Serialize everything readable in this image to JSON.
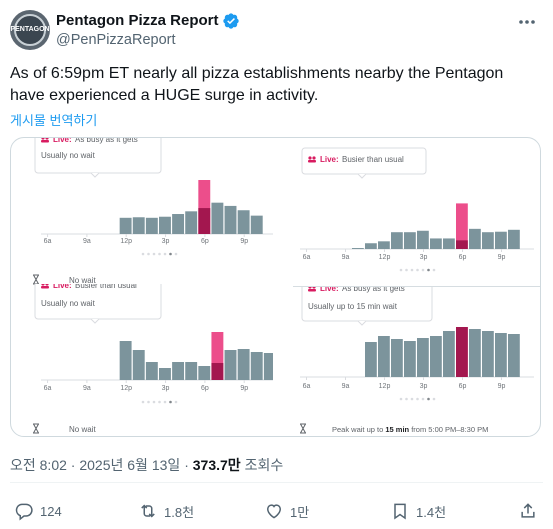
{
  "account": {
    "name": "Pentagon Pizza Report",
    "handle": "@PenPizzaReport",
    "avatar_text": "PENTAGON",
    "verified_icon": "verified-badge-icon",
    "verified_color": "#1d9bf0"
  },
  "tweet": {
    "text": "As of 6:59pm ET nearly all pizza establishments nearby the Pentagon have experienced a HUGE surge in activity.",
    "translate_label": "게시물 번역하기"
  },
  "media": {
    "colors": {
      "bar": "#7c949c",
      "live_light": "#ec4e8b",
      "live_dark": "#a3174f",
      "live_label": "#d81b60",
      "tooltip_text": "#5f6368",
      "faint_bar": "#b7d2e0"
    },
    "panels": [
      {
        "live_label": "Live:",
        "status": "As busy as it gets",
        "wait": "Usually no wait",
        "footer": "No wait",
        "ticks": [
          "6a",
          "9a",
          "12p",
          "3p",
          "6p",
          "9p"
        ],
        "chart_data": {
          "type": "bar",
          "categories": [
            "6a",
            "7a",
            "8a",
            "9a",
            "10a",
            "11a",
            "12p",
            "1p",
            "2p",
            "3p",
            "4p",
            "5p",
            "6p",
            "7p",
            "8p",
            "9p",
            "10p",
            "11p"
          ],
          "values": [
            0,
            0,
            0,
            0,
            0,
            0,
            30,
            31,
            30,
            32,
            37,
            42,
            48,
            58,
            52,
            44,
            34,
            0
          ],
          "live_index": 12,
          "live_value": 100,
          "ylim": [
            0,
            100
          ]
        }
      },
      {
        "live_label": "Live:",
        "status": "Busier than usual",
        "wait": "",
        "footer": "",
        "ticks": [
          "6a",
          "9a",
          "12p",
          "3p",
          "6p",
          "9p"
        ],
        "chart_data": {
          "type": "bar",
          "categories": [
            "6a",
            "7a",
            "8a",
            "9a",
            "10a",
            "11a",
            "12p",
            "1p",
            "2p",
            "3p",
            "4p",
            "5p",
            "6p",
            "7p",
            "8p",
            "9p",
            "10p",
            "11p"
          ],
          "values": [
            0,
            0,
            0,
            0,
            2,
            12,
            16,
            35,
            35,
            38,
            22,
            22,
            18,
            42,
            35,
            36,
            40,
            0
          ],
          "live_index": 12,
          "live_value": 95,
          "ylim": [
            0,
            100
          ]
        }
      },
      {
        "live_label": "Live:",
        "status": "Busier than usual",
        "wait": "Usually no wait",
        "footer": "No wait",
        "ticks": [
          "6a",
          "9a",
          "12p",
          "3p",
          "6p",
          "9p"
        ],
        "chart_data": {
          "type": "bar",
          "categories": [
            "6a",
            "7a",
            "8a",
            "9a",
            "10a",
            "11a",
            "12p",
            "1p",
            "2p",
            "3p",
            "4p",
            "5p",
            "6p",
            "7p",
            "8p",
            "9p",
            "10p",
            "11p"
          ],
          "values": [
            0,
            0,
            0,
            0,
            0,
            0,
            78,
            60,
            36,
            24,
            36,
            36,
            28,
            34,
            60,
            62,
            56,
            54
          ],
          "live_index": 13,
          "live_value": 96,
          "ylim": [
            0,
            100
          ]
        }
      },
      {
        "live_label": "Live:",
        "status": "As busy as it gets",
        "wait": "Usually up to 15 min wait",
        "footer_prefix": "Peak wait up to ",
        "footer_bold": "15 min",
        "footer_suffix": " from 5:00 PM–8:30 PM",
        "ticks": [
          "6a",
          "9a",
          "12p",
          "3p",
          "6p",
          "9p"
        ],
        "chart_data": {
          "type": "bar",
          "categories": [
            "6a",
            "7a",
            "8a",
            "9a",
            "10a",
            "11a",
            "12p",
            "1p",
            "2p",
            "3p",
            "4p",
            "5p",
            "6p",
            "7p",
            "8p",
            "9p",
            "10p",
            "11p"
          ],
          "values": [
            0,
            0,
            0,
            0,
            0,
            70,
            82,
            76,
            72,
            78,
            82,
            92,
            100,
            96,
            92,
            88,
            86,
            0
          ],
          "live_index": 12,
          "live_value": 100,
          "ylim": [
            0,
            100
          ]
        }
      }
    ]
  },
  "meta": {
    "time": "오전 8:02",
    "date": "2025년 6월 13일",
    "views": "373.7만",
    "views_label": "조회수"
  },
  "actions": {
    "replies": "124",
    "reposts": "1.8천",
    "likes": "1만",
    "bookmarks": "1.4천"
  }
}
